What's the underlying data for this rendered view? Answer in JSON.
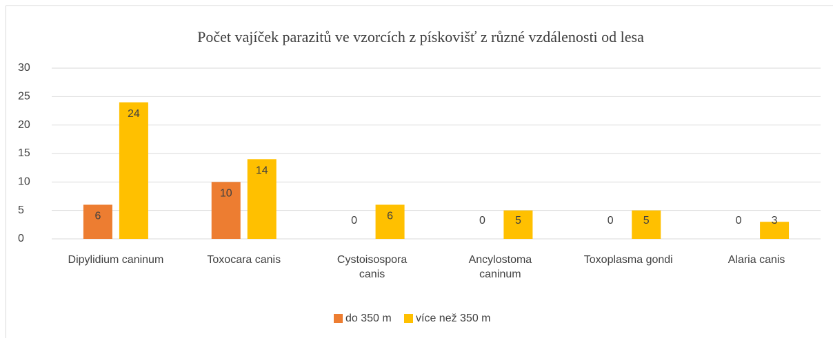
{
  "chart_data": {
    "type": "bar",
    "title": "Počet vajíček parazitů ve vzorcích z pískovišť z různé vzdálenosti od lesa",
    "categories": [
      "Dipylidium caninum",
      "Toxocara canis",
      "Cystoisospora canis",
      "Ancylostoma caninum",
      "Toxoplasma gondi",
      "Alaria canis"
    ],
    "series": [
      {
        "name": "do 350 m",
        "color": "#ed7d31",
        "values": [
          6,
          10,
          0,
          0,
          0,
          0
        ]
      },
      {
        "name": "více než 350 m",
        "color": "#ffc000",
        "values": [
          24,
          14,
          6,
          5,
          5,
          3
        ]
      }
    ],
    "ylim": [
      0,
      30
    ],
    "yticks": [
      0,
      5,
      10,
      15,
      20,
      25,
      30
    ],
    "grid": true,
    "legend": "bottom"
  }
}
